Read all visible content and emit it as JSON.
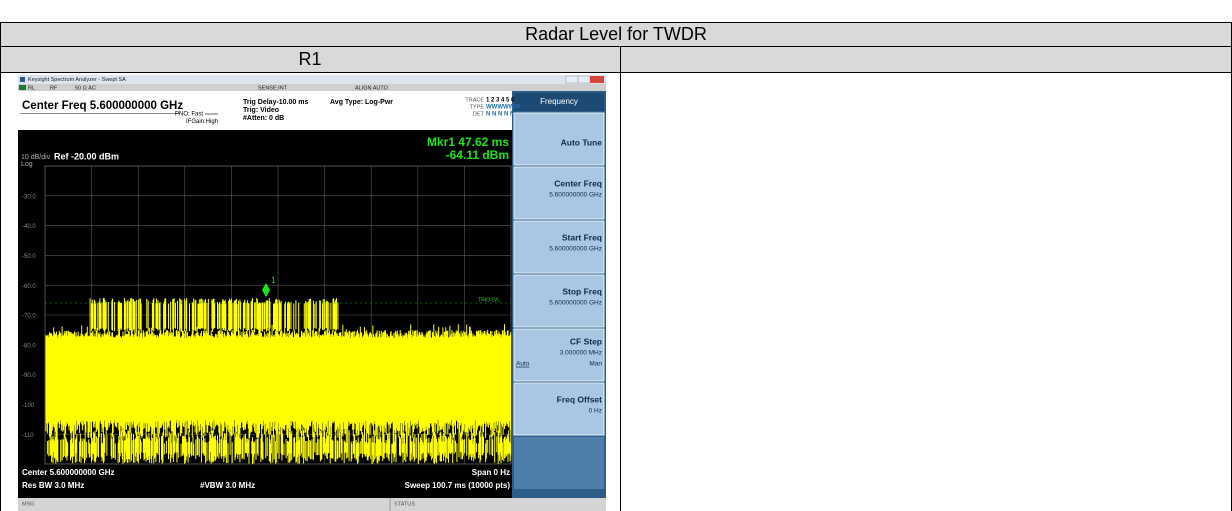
{
  "header": {
    "title": "Radar Level for TWDR"
  },
  "row": {
    "label": "R1"
  },
  "analyzer": {
    "window_title": "Keysight Spectrum Analyzer - Swept SA",
    "status_line": [
      "RL",
      "RF",
      "50 Ω  AC",
      "SENSE:INT",
      "ALIGN AUTO"
    ],
    "center_freq": "Center Freq 5.600000000 GHz",
    "pno": "PNO: Fast",
    "if_gain": "IFGain:High",
    "trig_delay": "Trig Delay-10.00 ms",
    "trig": "Trig: Video",
    "atten": "#Atten: 0 dB",
    "avg_type": "Avg Type: Log-Pwr",
    "trace_rows": [
      {
        "label": "TRACE",
        "value": "1 2 3 4 5 6"
      },
      {
        "label": "TYPE",
        "value": "WWWWWW"
      },
      {
        "label": "DET",
        "value": "N N N N N N"
      }
    ],
    "marker": {
      "readout": [
        "Mkr1 47.62 ms",
        "-64.11 dBm"
      ],
      "label": "1"
    },
    "scale": "10 dB/div",
    "scale_type": "Log",
    "ref_level": "Ref -20.00 dBm",
    "y_labels": [
      "-30.0",
      "-40.0",
      "-50.0",
      "-60.0",
      "-70.0",
      "-80.0",
      "-90.0",
      "-100",
      "-110"
    ],
    "trig_level": "TRIG LVL",
    "footer": [
      "Center 5.600000000 GHz",
      "Span 0 Hz",
      "Res BW 3.0 MHz",
      "#VBW 3.0 MHz",
      "Sweep  100.7 ms (10000 pts)"
    ],
    "message_bar": [
      "MSG",
      "STATUS"
    ],
    "softkeys": {
      "title": "Frequency",
      "keys": [
        {
          "label": "Auto Tune"
        },
        {
          "label": "Center Freq",
          "value": "5.600000000 GHz"
        },
        {
          "label": "Start Freq",
          "value": "5.600000000 GHz"
        },
        {
          "label": "Stop Freq",
          "value": "5.600000000 GHz"
        },
        {
          "label": "CF Step",
          "value": "3.000000 MHz",
          "options": [
            "Auto",
            "Man"
          ]
        },
        {
          "label": "Freq Offset",
          "value": "0 Hz"
        }
      ]
    }
  }
}
